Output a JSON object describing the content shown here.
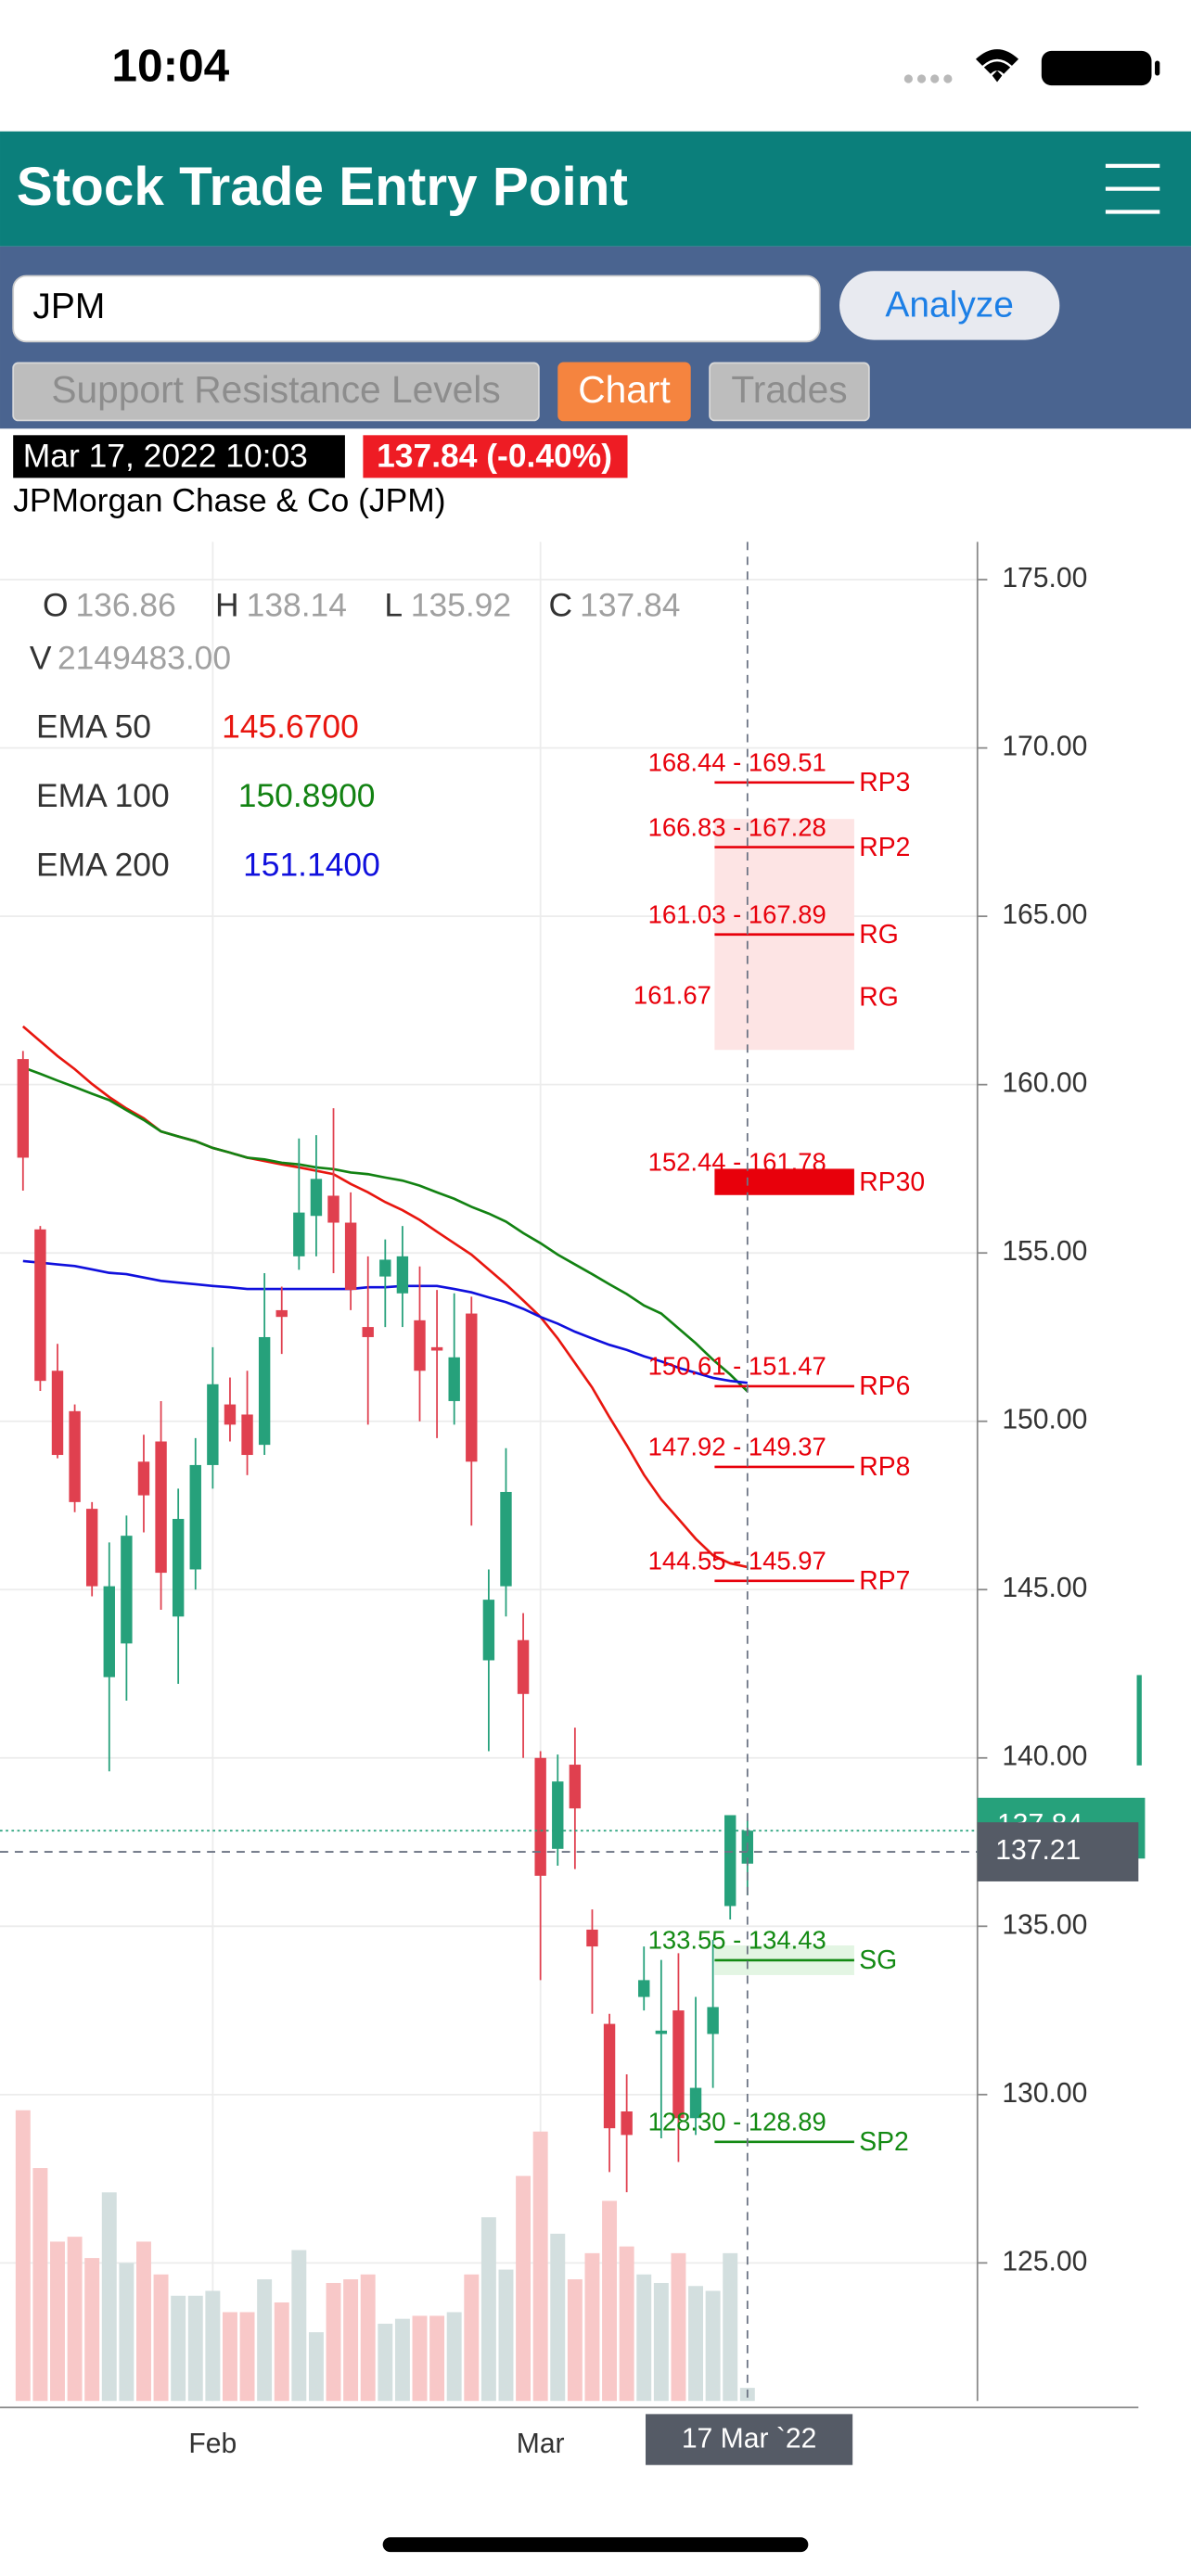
{
  "status_bar": {
    "time": "10:04"
  },
  "header": {
    "title": "Stock Trade Entry Point"
  },
  "search": {
    "symbol": "JPM",
    "button": "Analyze"
  },
  "tabs": [
    {
      "label": "Support Resistance Levels",
      "active": false
    },
    {
      "label": "Chart",
      "active": true
    },
    {
      "label": "Trades",
      "active": false
    }
  ],
  "quote": {
    "timestamp": "Mar 17, 2022 10:03",
    "price_change": "137.84 (-0.40%)",
    "company": "JPMorgan Chase & Co (JPM)"
  },
  "chart_data": {
    "type": "candlestick",
    "categories": [
      null,
      null,
      null,
      null,
      null,
      null,
      null,
      null,
      null,
      null,
      null,
      "Feb",
      null,
      null,
      null,
      null,
      null,
      null,
      null,
      null,
      null,
      null,
      null,
      null,
      null,
      null,
      null,
      null,
      null,
      null,
      "Mar",
      null,
      null,
      null,
      null,
      null,
      null,
      null,
      null,
      null,
      null,
      null,
      null
    ],
    "open": [
      160.76,
      155.7,
      151.5,
      150.3,
      147.4,
      142.4,
      143.4,
      148.8,
      149.4,
      144.2,
      145.6,
      148.7,
      150.5,
      150.2,
      149.3,
      153.3,
      154.9,
      156.1,
      156.7,
      155.9,
      152.8,
      154.3,
      153.8,
      153.0,
      152.2,
      150.6,
      153.2,
      142.9,
      145.1,
      143.5,
      140.0,
      137.3,
      139.8,
      134.9,
      132.1,
      129.5,
      132.9,
      131.8,
      132.5,
      129.3,
      131.8,
      135.6,
      136.86
    ],
    "high": [
      161.0,
      155.8,
      152.3,
      150.5,
      147.6,
      146.4,
      147.2,
      149.6,
      150.6,
      148.0,
      149.5,
      152.2,
      151.3,
      151.5,
      154.4,
      154.0,
      158.4,
      158.5,
      159.3,
      156.8,
      154.9,
      155.4,
      155.8,
      154.6,
      153.9,
      153.8,
      153.7,
      145.6,
      149.2,
      144.3,
      140.2,
      140.1,
      140.9,
      135.5,
      132.4,
      130.6,
      134.4,
      134.0,
      134.2,
      132.9,
      134.6,
      138.3,
      138.14
    ],
    "low": [
      156.85,
      150.9,
      148.9,
      147.3,
      144.8,
      139.6,
      141.7,
      146.7,
      144.4,
      142.2,
      145.0,
      148.0,
      149.4,
      148.4,
      149.0,
      152.0,
      154.5,
      154.9,
      154.4,
      153.3,
      149.9,
      152.8,
      152.8,
      150.0,
      149.5,
      149.9,
      146.9,
      140.2,
      144.2,
      140.0,
      133.4,
      136.8,
      136.7,
      132.4,
      127.7,
      127.1,
      132.5,
      128.7,
      128.0,
      128.8,
      130.2,
      135.2,
      135.92
    ],
    "close": [
      157.83,
      151.2,
      149.0,
      147.6,
      145.1,
      145.1,
      146.6,
      147.8,
      145.5,
      147.1,
      148.7,
      151.1,
      149.9,
      149.0,
      152.5,
      153.1,
      156.2,
      157.2,
      155.9,
      153.9,
      152.5,
      154.8,
      154.9,
      151.5,
      152.1,
      151.9,
      148.8,
      144.7,
      147.9,
      141.9,
      136.5,
      139.3,
      138.5,
      134.4,
      129.0,
      128.8,
      133.4,
      131.9,
      129.3,
      130.2,
      132.6,
      138.3,
      137.84
    ],
    "up_color": "#26a17b",
    "down_color": "#e0404f",
    "legend_letters": {
      "open": "O",
      "high": "H",
      "low": "L",
      "close": "C",
      "volume": "V"
    },
    "volume": {
      "values": [
        47800000,
        38300000,
        26200000,
        27000000,
        23500000,
        34300000,
        22700000,
        26200000,
        20800000,
        17300000,
        17300000,
        18100000,
        14600000,
        14600000,
        20000000,
        16200000,
        24800000,
        11300000,
        19400000,
        20000000,
        20800000,
        12700000,
        13500000,
        14000000,
        14000000,
        14600000,
        20800000,
        30200000,
        21600000,
        37000000,
        44300000,
        27500000,
        20000000,
        24300000,
        32900000,
        25400000,
        20800000,
        19400000,
        24300000,
        18900000,
        18100000,
        24300000,
        2149483
      ],
      "value_labels": [
        null,
        null,
        null,
        null,
        null,
        null,
        null,
        null,
        null,
        null,
        null,
        null,
        null,
        null,
        null,
        null,
        null,
        null,
        null,
        null,
        null,
        null,
        null,
        null,
        null,
        null,
        null,
        null,
        null,
        null,
        null,
        null,
        null,
        null,
        null,
        null,
        null,
        null,
        null,
        null,
        null,
        null,
        "2149483.00"
      ],
      "up_color": "#d3dfdf",
      "down_color": "#f8c8c8"
    },
    "series": [
      {
        "name": "EMA 50",
        "color": "#e8160f",
        "values": [
          161.73,
          161.29,
          160.85,
          160.46,
          160.02,
          159.63,
          159.29,
          159.0,
          158.61,
          158.46,
          158.32,
          158.12,
          157.98,
          157.83,
          157.73,
          157.63,
          157.54,
          157.44,
          157.34,
          157.05,
          156.8,
          156.51,
          156.27,
          155.98,
          155.63,
          155.29,
          154.95,
          154.51,
          154.07,
          153.59,
          153.1,
          152.46,
          151.73,
          151.0,
          150.12,
          149.29,
          148.41,
          147.68,
          147.1,
          146.51,
          146.02,
          145.78,
          145.67
        ],
        "value_labels": [
          null,
          null,
          null,
          null,
          null,
          null,
          null,
          null,
          null,
          null,
          null,
          null,
          null,
          null,
          null,
          null,
          null,
          null,
          null,
          null,
          null,
          null,
          null,
          null,
          null,
          null,
          null,
          null,
          null,
          null,
          null,
          null,
          null,
          null,
          null,
          null,
          null,
          null,
          null,
          null,
          null,
          null,
          "145.6700"
        ]
      },
      {
        "name": "EMA 100",
        "color": "#128212",
        "values": [
          160.51,
          160.32,
          160.12,
          159.93,
          159.73,
          159.54,
          159.24,
          158.95,
          158.61,
          158.46,
          158.32,
          158.12,
          157.98,
          157.83,
          157.78,
          157.68,
          157.63,
          157.54,
          157.49,
          157.39,
          157.34,
          157.24,
          157.15,
          157.0,
          156.8,
          156.61,
          156.37,
          156.17,
          155.93,
          155.59,
          155.29,
          154.95,
          154.66,
          154.37,
          154.07,
          153.78,
          153.44,
          153.2,
          152.76,
          152.32,
          151.83,
          151.39,
          150.89
        ],
        "value_labels": [
          null,
          null,
          null,
          null,
          null,
          null,
          null,
          null,
          null,
          null,
          null,
          null,
          null,
          null,
          null,
          null,
          null,
          null,
          null,
          null,
          null,
          null,
          null,
          null,
          null,
          null,
          null,
          null,
          null,
          null,
          null,
          null,
          null,
          null,
          null,
          null,
          null,
          null,
          null,
          null,
          null,
          null,
          "150.8900"
        ]
      },
      {
        "name": "EMA 200",
        "color": "#1010dd",
        "values": [
          154.76,
          154.71,
          154.66,
          154.61,
          154.51,
          154.41,
          154.37,
          154.27,
          154.17,
          154.12,
          154.07,
          154.02,
          153.98,
          153.93,
          153.93,
          153.93,
          153.93,
          153.93,
          153.93,
          153.93,
          153.98,
          153.98,
          154.02,
          154.02,
          154.02,
          153.93,
          153.83,
          153.68,
          153.54,
          153.34,
          153.1,
          152.9,
          152.66,
          152.46,
          152.27,
          152.12,
          151.93,
          151.78,
          151.59,
          151.44,
          151.29,
          151.2,
          151.14
        ],
        "value_labels": [
          null,
          null,
          null,
          null,
          null,
          null,
          null,
          null,
          null,
          null,
          null,
          null,
          null,
          null,
          null,
          null,
          null,
          null,
          null,
          null,
          null,
          null,
          null,
          null,
          null,
          null,
          null,
          null,
          null,
          null,
          null,
          null,
          null,
          null,
          null,
          null,
          null,
          null,
          null,
          null,
          null,
          null,
          "151.1400"
        ]
      }
    ],
    "levels": [
      {
        "label": "168.44 - 169.51",
        "name": "RP3",
        "low": 168.44,
        "high": 169.51,
        "color": "#e8000b"
      },
      {
        "label": "166.83 - 167.28",
        "name": "RP2",
        "low": 166.83,
        "high": 167.28,
        "color": "#e8000b"
      },
      {
        "label": "161.03 - 167.89",
        "name": "RG",
        "low": 161.03,
        "high": 167.89,
        "color": "#e8000b",
        "band": true,
        "band_color": "#fde4e4"
      },
      {
        "label": 161.67,
        "name": "RG",
        "color": "#e8000b"
      },
      {
        "label": "152.44 - 161.78",
        "name": "RP30",
        "low": 152.44,
        "high": 161.78,
        "color": "#e8000b",
        "thick": true
      },
      {
        "label": "150.61 - 151.47",
        "name": "RP6",
        "low": 150.61,
        "high": 151.47,
        "color": "#e8000b"
      },
      {
        "label": "147.92 - 149.37",
        "name": "RP8",
        "low": 147.92,
        "high": 149.37,
        "color": "#e8000b"
      },
      {
        "label": "144.55 - 145.97",
        "name": "RP7",
        "low": 144.55,
        "high": 145.97,
        "color": "#e8000b"
      },
      {
        "label": "133.55 - 134.43",
        "name": "SG",
        "low": 133.55,
        "high": 134.43,
        "color": "#138a13",
        "band": true,
        "band_color": "#e3f5e3"
      },
      {
        "label": "128.30 - 128.89",
        "name": "SP2",
        "low": 128.3,
        "high": 128.89,
        "color": "#138a13"
      }
    ],
    "ylim": [
      120.9,
      176.12
    ],
    "yticks": [
      {
        "value": 125,
        "label": "125.00"
      },
      {
        "value": 130,
        "label": "130.00"
      },
      {
        "value": 135,
        "label": "135.00"
      },
      {
        "value": 140,
        "label": "140.00"
      },
      {
        "value": 145,
        "label": "145.00"
      },
      {
        "value": 150,
        "label": "150.00"
      },
      {
        "value": 155,
        "label": "155.00"
      },
      {
        "value": 160,
        "label": "160.00"
      },
      {
        "value": 165,
        "label": "165.00"
      },
      {
        "value": 170,
        "label": "170.00"
      },
      {
        "value": 175,
        "label": "175.00"
      }
    ],
    "grid": true,
    "crosshair": {
      "x_label": "17 Mar `22",
      "y": 137.21
    }
  }
}
